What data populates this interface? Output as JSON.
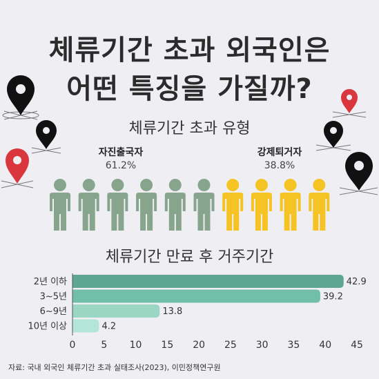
{
  "title": {
    "line1": "체류기간 초과 외국인은",
    "line2": "어떤 특징을 가질까?"
  },
  "icons": {
    "pin_black": "map-pin-icon",
    "pin_red": "map-pin-icon",
    "person": "person-icon"
  },
  "colors": {
    "voluntary": "#87a58c",
    "deported": "#f6c324",
    "bar_dark": "#5fa692",
    "bar_mid": "#72bfa9",
    "bar_light": "#9ad6c1",
    "bar_lighter": "#b3e6d6",
    "pin_black": "#111111",
    "pin_red": "#d9363e"
  },
  "chart_data": [
    {
      "type": "pictograph",
      "title": "체류기간 초과 유형",
      "groups": [
        {
          "name": "자진출국자",
          "value_label": "61.2%",
          "value": 61.2,
          "icons": 6
        },
        {
          "name": "강제퇴거자",
          "value_label": "38.8%",
          "value": 38.8,
          "icons": 4
        }
      ]
    },
    {
      "type": "bar",
      "orientation": "horizontal",
      "title": "체류기간 만료 후 거주기간",
      "categories": [
        "2년 이하",
        "3~5년",
        "6~9년",
        "10년 이상"
      ],
      "values": [
        42.9,
        39.2,
        13.8,
        4.2
      ],
      "value_labels": [
        "42.9",
        "39.2",
        "13.8",
        "4.2"
      ],
      "xlim": [
        0,
        45
      ],
      "xticks": [
        "0",
        "5",
        "10",
        "15",
        "20",
        "25",
        "30",
        "35",
        "40",
        "45"
      ],
      "grid": false,
      "legend": false
    }
  ],
  "source": "자료: 국내 외국인 체류기간 초과 실태조사(2023), 이민정책연구원"
}
